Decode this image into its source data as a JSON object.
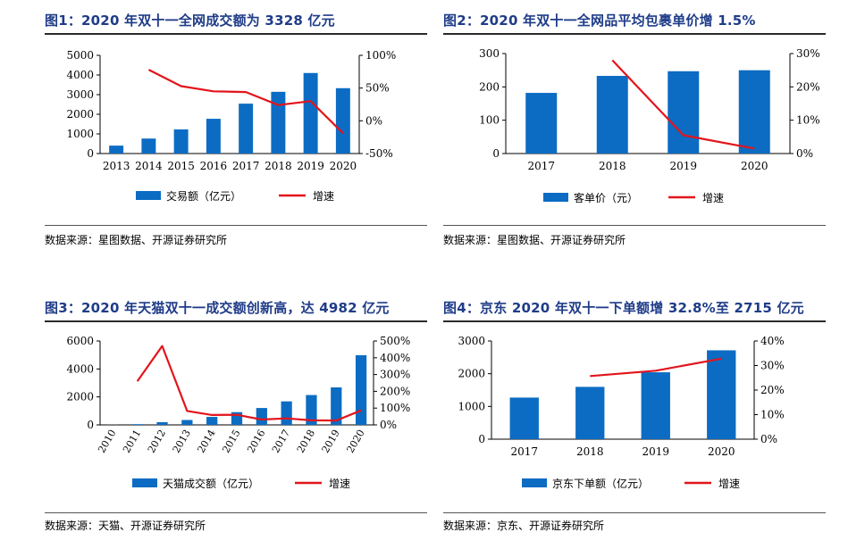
{
  "colors": {
    "bar": "#0c6cc3",
    "line": "#e3141b",
    "title": "#1f3c88"
  },
  "charts": [
    {
      "title": "图1：2020 年双十一全网成交额为 3328 亿元",
      "source": "数据来源：星图数据、开源证券研究所",
      "chart_data": {
        "type": "bar",
        "categories": [
          "2013",
          "2014",
          "2015",
          "2016",
          "2017",
          "2018",
          "2019",
          "2020"
        ],
        "series": [
          {
            "name": "交易额（亿元）",
            "type": "bar",
            "axis": "left",
            "values": [
              403,
              763,
              1229,
              1770,
              2540,
              3143,
              4101,
              3328
            ]
          },
          {
            "name": "增速",
            "type": "line",
            "axis": "right",
            "values": [
              null,
              0.78,
              0.53,
              0.45,
              0.44,
              0.24,
              0.3,
              -0.19
            ]
          }
        ],
        "y_left": {
          "min": 0,
          "max": 5000,
          "ticks": [
            "0",
            "1000",
            "2000",
            "3000",
            "4000",
            "5000"
          ]
        },
        "y_right": {
          "min": -0.5,
          "max": 1.0,
          "ticks": [
            "-50%",
            "0%",
            "50%",
            "100%"
          ]
        },
        "xlabel": "",
        "ylabel": "",
        "legend": "bottom",
        "grid": false,
        "rotate_x": false
      }
    },
    {
      "title": "图2：2020 年双十一全网品平均包裹单价增 1.5%",
      "source": "数据来源：星图数据、开源证券研究所",
      "chart_data": {
        "type": "bar",
        "categories": [
          "2017",
          "2018",
          "2019",
          "2020"
        ],
        "series": [
          {
            "name": "客单价（元）",
            "type": "bar",
            "axis": "left",
            "values": [
              182,
              233,
              247,
              250
            ]
          },
          {
            "name": "增速",
            "type": "line",
            "axis": "right",
            "values": [
              null,
              0.28,
              0.055,
              0.015
            ]
          }
        ],
        "y_left": {
          "min": 0,
          "max": 300,
          "ticks": [
            "0",
            "100",
            "200",
            "300"
          ]
        },
        "y_right": {
          "min": 0,
          "max": 0.3,
          "ticks": [
            "0%",
            "10%",
            "20%",
            "30%"
          ]
        },
        "xlabel": "",
        "ylabel": "",
        "legend": "bottom",
        "grid": false,
        "rotate_x": false
      }
    },
    {
      "title": "图3：2020 年天猫双十一成交额创新高，达 4982 亿元",
      "source": "数据来源：天猫、开源证券研究所",
      "chart_data": {
        "type": "bar",
        "categories": [
          "2010",
          "2011",
          "2012",
          "2013",
          "2014",
          "2015",
          "2016",
          "2017",
          "2018",
          "2019",
          "2020"
        ],
        "series": [
          {
            "name": "天猫成交额（亿元）",
            "type": "bar",
            "axis": "left",
            "values": [
              9,
              52,
              191,
              350,
              571,
              912,
              1207,
              1682,
              2135,
              2684,
              4982
            ]
          },
          {
            "name": "增速",
            "type": "line",
            "axis": "right",
            "values": [
              null,
              2.6,
              4.7,
              0.83,
              0.59,
              0.6,
              0.32,
              0.39,
              0.27,
              0.26,
              0.86
            ]
          }
        ],
        "y_left": {
          "min": 0,
          "max": 6000,
          "ticks": [
            "0",
            "2000",
            "4000",
            "6000"
          ]
        },
        "y_right": {
          "min": 0,
          "max": 5.0,
          "ticks": [
            "0%",
            "100%",
            "200%",
            "300%",
            "400%",
            "500%"
          ]
        },
        "xlabel": "",
        "ylabel": "",
        "legend": "bottom",
        "grid": false,
        "rotate_x": true
      }
    },
    {
      "title": "图4：京东 2020 年双十一下单额增 32.8%至 2715 亿元",
      "source": "数据来源：京东、开源证券研究所",
      "chart_data": {
        "type": "bar",
        "categories": [
          "2017",
          "2018",
          "2019",
          "2020"
        ],
        "series": [
          {
            "name": "京东下单额（亿元）",
            "type": "bar",
            "axis": "left",
            "values": [
              1271,
              1598,
              2044,
              2715
            ]
          },
          {
            "name": "增速",
            "type": "line",
            "axis": "right",
            "values": [
              null,
              0.257,
              0.279,
              0.328
            ]
          }
        ],
        "y_left": {
          "min": 0,
          "max": 3000,
          "ticks": [
            "0",
            "1000",
            "2000",
            "3000"
          ]
        },
        "y_right": {
          "min": 0,
          "max": 0.4,
          "ticks": [
            "0%",
            "10%",
            "20%",
            "30%",
            "40%"
          ]
        },
        "xlabel": "",
        "ylabel": "",
        "legend": "bottom",
        "grid": false,
        "rotate_x": false
      }
    }
  ]
}
